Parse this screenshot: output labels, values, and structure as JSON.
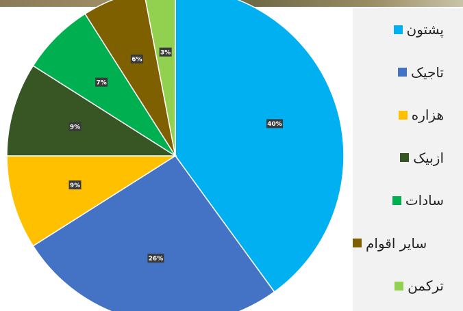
{
  "chart_data": {
    "type": "pie",
    "title": "",
    "series": [
      {
        "name": "پشتون",
        "value": 40,
        "label": "40%",
        "color": "#00b0f0"
      },
      {
        "name": "تاجیک",
        "value": 26,
        "label": "26%",
        "color": "#4472c4"
      },
      {
        "name": "هزاره",
        "value": 9,
        "label": "9%",
        "color": "#ffc000"
      },
      {
        "name": "ازبیک",
        "value": 9,
        "label": "9%",
        "color": "#375623"
      },
      {
        "name": "سادات",
        "value": 7,
        "label": "7%",
        "color": "#00b050"
      },
      {
        "name": "سایر اقوام",
        "value": 6,
        "label": "6%",
        "color": "#7f6000"
      },
      {
        "name": "ترکمن",
        "value": 3,
        "label": "3%",
        "color": "#92d050"
      }
    ],
    "legend_position": "right",
    "slice_order": "clockwise from 12 o'clock"
  }
}
